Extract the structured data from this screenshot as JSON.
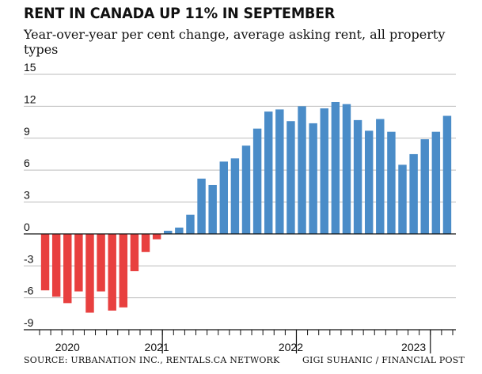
{
  "chart_data": {
    "type": "bar",
    "title": "RENT IN CANADA UP 11% IN SEPTEMBER",
    "subtitle": "Year-over-year per cent change, average asking rent, all property types",
    "xlabel": "",
    "ylabel": "",
    "ylim": [
      -9,
      15
    ],
    "yticks": [
      "15",
      "12",
      "9",
      "6",
      "3",
      "0",
      "-3",
      "-6",
      "-9"
    ],
    "x_labels": [
      {
        "label": "2020",
        "index": 2
      },
      {
        "label": "2021",
        "index": 10
      },
      {
        "label": "2022",
        "index": 22
      },
      {
        "label": "2023",
        "index": 33
      }
    ],
    "x": [
      "2020-01",
      "2020-02",
      "2020-03",
      "2020-04",
      "2020-05",
      "2020-06",
      "2020-07",
      "2020-08",
      "2020-09",
      "2020-10",
      "2020-11",
      "2020-12",
      "2021-01",
      "2021-02",
      "2021-03",
      "2021-04",
      "2021-05",
      "2021-06",
      "2021-07",
      "2021-08",
      "2021-09",
      "2021-10",
      "2021-11",
      "2021-12",
      "2022-01",
      "2022-02",
      "2022-03",
      "2022-04",
      "2022-05",
      "2022-06",
      "2022-07",
      "2022-08",
      "2022-09",
      "2022-10",
      "2022-11",
      "2022-12",
      "2023-01"
    ],
    "values": [
      -5.3,
      -5.9,
      -6.5,
      -5.4,
      -7.4,
      -5.4,
      -7.2,
      -6.9,
      -3.5,
      -1.7,
      -0.5,
      0.3,
      0.6,
      1.8,
      5.2,
      4.6,
      6.8,
      7.1,
      8.3,
      9.9,
      11.5,
      11.7,
      10.6,
      12.0,
      10.4,
      11.8,
      12.4,
      12.2,
      10.7,
      9.7,
      10.8,
      9.6,
      6.5,
      7.5,
      8.9,
      9.6,
      11.1
    ],
    "colors": {
      "negative": "#e8403f",
      "positive": "#4a8cc8",
      "grid": "#bbbbbb",
      "axis": "#111111"
    },
    "grid": true,
    "legend": "none"
  },
  "footer": {
    "source": "SOURCE: URBANATION INC., RENTALS.CA NETWORK",
    "credit": "GIGI SUHANIC / FINANCIAL POST"
  }
}
